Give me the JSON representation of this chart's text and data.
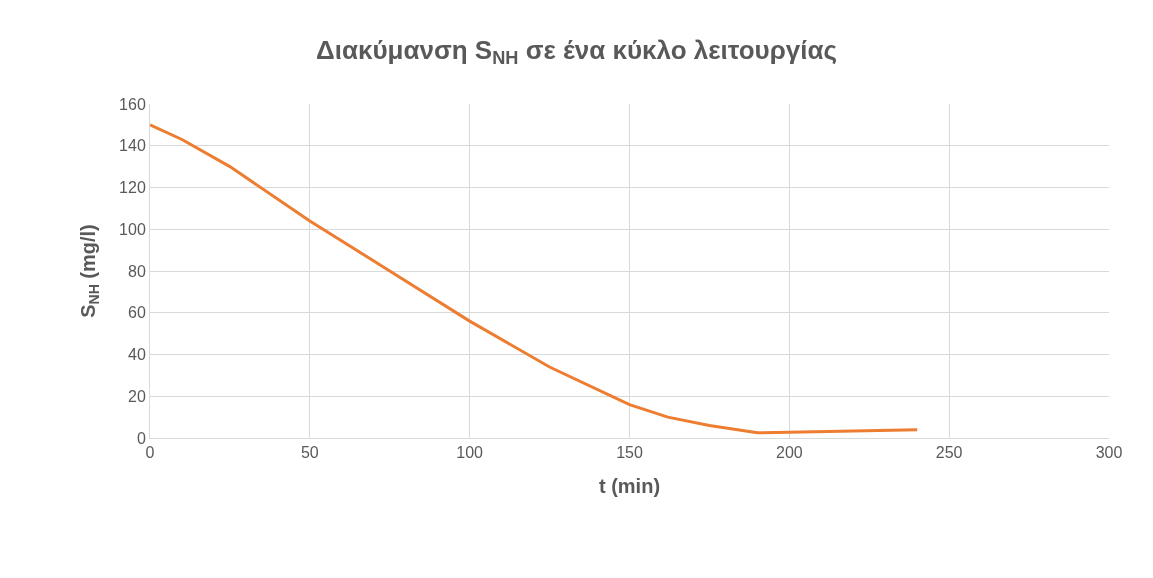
{
  "chart_data": {
    "type": "line",
    "title": "Διακύμανση S$_{NH}$ σε ένα κύκλο λειτουργίας",
    "xlabel": "t (min)",
    "ylabel": "S$_{NH}$ (mg/l)",
    "x": [
      0,
      10,
      25,
      50,
      75,
      100,
      125,
      150,
      162,
      175,
      190,
      200,
      220,
      240
    ],
    "series": [
      {
        "color": "#ed7d31",
        "values": [
          150,
          143,
          130,
          104,
          80,
          56,
          34,
          16,
          10,
          6,
          2.5,
          2.7,
          3.3,
          4
        ]
      }
    ],
    "xlim": [
      0,
      300
    ],
    "xticks": [
      0,
      50,
      100,
      150,
      200,
      250,
      300
    ],
    "ylim": [
      0,
      160
    ],
    "yticks": [
      0,
      20,
      40,
      60,
      80,
      100,
      120,
      140,
      160
    ],
    "grid": true,
    "marker": "none",
    "line_style": "solid"
  }
}
